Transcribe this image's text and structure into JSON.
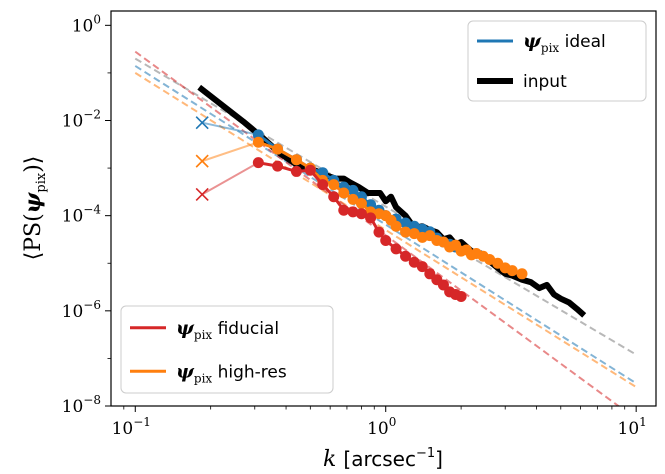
{
  "chart_data": {
    "type": "line",
    "xscale": "log",
    "yscale": "log",
    "xlim": [
      0.08,
      12
    ],
    "ylim": [
      1e-08,
      2
    ],
    "xlabel": "k [arcsec^-1]",
    "ylabel": "⟨PS(ψ_pix)⟩",
    "x_ticks": [
      {
        "value": 0.1,
        "base": "10",
        "exp": "−1"
      },
      {
        "value": 1,
        "base": "10",
        "exp": "0"
      },
      {
        "value": 10,
        "base": "10",
        "exp": "1"
      }
    ],
    "y_ticks": [
      {
        "value": 1,
        "base": "10",
        "exp": "0"
      },
      {
        "value": 0.01,
        "base": "10",
        "exp": "−2"
      },
      {
        "value": 0.0001,
        "base": "10",
        "exp": "−4"
      },
      {
        "value": 1e-06,
        "base": "10",
        "exp": "−6"
      },
      {
        "value": 1e-08,
        "base": "10",
        "exp": "−8"
      }
    ],
    "legends": [
      {
        "position": "upper-right",
        "entries": [
          {
            "label_sym": "ψ",
            "label_sub": "pix",
            "label_text": " ideal",
            "color": "#1f77b4",
            "width": 3
          },
          {
            "label_sym": "",
            "label_sub": "",
            "label_text": "input",
            "color": "#000000",
            "width": 6
          }
        ]
      },
      {
        "position": "lower-left",
        "entries": [
          {
            "label_sym": "ψ",
            "label_sub": "pix",
            "label_text": " fiducial",
            "color": "#d62728",
            "width": 3
          },
          {
            "label_sym": "ψ",
            "label_sub": "pix",
            "label_text": " high-res",
            "color": "#ff7f0e",
            "width": 3
          }
        ]
      }
    ],
    "series": [
      {
        "name": "input",
        "color": "#000000",
        "kind": "line",
        "x": [
          0.18,
          0.22,
          0.27,
          0.32,
          0.38,
          0.45,
          0.52,
          0.58,
          0.63,
          0.68,
          0.72,
          0.78,
          0.85,
          0.9,
          0.95,
          1.0,
          1.05,
          1.1,
          1.2,
          1.3,
          1.4,
          1.5,
          1.6,
          1.7,
          1.8,
          1.9,
          2.0,
          2.2,
          2.4,
          2.6,
          2.8,
          3.0,
          3.2,
          3.5,
          3.8,
          4.1,
          4.4,
          4.7,
          5.0,
          5.4,
          5.8,
          6.2
        ],
        "y": [
          0.05,
          0.022,
          0.0095,
          0.0045,
          0.002,
          0.0011,
          0.0009,
          0.0007,
          0.0006,
          0.0006,
          0.0005,
          0.0004,
          0.0003,
          0.0003,
          0.0003,
          0.0002,
          0.00025,
          0.00015,
          0.0001,
          5.5e-05,
          6e-05,
          5e-05,
          4.5e-05,
          3.2e-05,
          3.5e-05,
          2.5e-05,
          2.8e-05,
          1.8e-05,
          1.6e-05,
          1.1e-05,
          8e-06,
          6e-06,
          5.5e-06,
          4.5e-06,
          4e-06,
          3e-06,
          3.5e-06,
          2.2e-06,
          1.8e-06,
          1.5e-06,
          1.1e-06,
          8e-07
        ]
      },
      {
        "name": "ψ_pix ideal",
        "color": "#1f77b4",
        "kind": "points",
        "cross": {
          "x": 0.185,
          "y": 0.009
        },
        "x": [
          0.31,
          0.37,
          0.44,
          0.5,
          0.56,
          0.62,
          0.68,
          0.74,
          0.8,
          0.87,
          0.94,
          1.0,
          1.1,
          1.2,
          1.3,
          1.4,
          1.5,
          1.6,
          1.7,
          1.8,
          1.9
        ],
        "y": [
          0.005,
          0.0025,
          0.0015,
          0.001,
          0.0008,
          0.00055,
          0.0004,
          0.00034,
          0.00025,
          0.00017,
          0.00013,
          0.0001,
          8.5e-05,
          7e-05,
          6e-05,
          5.2e-05,
          4.6e-05,
          3.4e-05,
          2.8e-05,
          2.5e-05,
          2.2e-05
        ]
      },
      {
        "name": "ψ_pix high-res",
        "color": "#ff7f0e",
        "kind": "points",
        "cross": {
          "x": 0.185,
          "y": 0.0014
        },
        "x": [
          0.31,
          0.37,
          0.44,
          0.5,
          0.56,
          0.62,
          0.68,
          0.74,
          0.8,
          0.87,
          0.94,
          1.0,
          1.05,
          1.1,
          1.2,
          1.3,
          1.4,
          1.5,
          1.6,
          1.7,
          1.8,
          1.9,
          2.0,
          2.1,
          2.2,
          2.3,
          2.45,
          2.6,
          2.8,
          3.0,
          3.2,
          3.5
        ],
        "y": [
          0.0035,
          0.0025,
          0.0015,
          0.001,
          0.00055,
          0.00045,
          0.0003,
          0.00022,
          0.00018,
          0.00012,
          0.00011,
          0.0001,
          8e-05,
          6e-05,
          4.5e-05,
          4.2e-05,
          3.5e-05,
          3.8e-05,
          3e-05,
          2.8e-05,
          2.2e-05,
          2.4e-05,
          1.8e-05,
          1.9e-05,
          1.5e-05,
          1.6e-05,
          1.4e-05,
          1.2e-05,
          1e-05,
          8e-06,
          7e-06,
          6e-06
        ]
      },
      {
        "name": "ψ_pix fiducial",
        "color": "#d62728",
        "kind": "points",
        "cross": {
          "x": 0.185,
          "y": 0.00028
        },
        "x": [
          0.31,
          0.37,
          0.44,
          0.5,
          0.56,
          0.62,
          0.68,
          0.74,
          0.8,
          0.87,
          0.94,
          1.0,
          1.1,
          1.2,
          1.3,
          1.4,
          1.5,
          1.6,
          1.7,
          1.8,
          1.9,
          2.0
        ],
        "y": [
          0.0013,
          0.0011,
          0.00085,
          0.0009,
          0.00045,
          0.00025,
          0.00013,
          0.00012,
          0.00011,
          9e-05,
          4.5e-05,
          3e-05,
          2e-05,
          1.4e-05,
          1.05e-05,
          8.5e-06,
          6e-06,
          4.5e-06,
          3.5e-06,
          2.5e-06,
          2.2e-06,
          2e-06
        ]
      }
    ],
    "power_law_fits": [
      {
        "color": "#7f7f7f",
        "x": [
          0.1,
          10
        ],
        "y": [
          0.2,
          1.2e-07
        ]
      },
      {
        "color": "#1f77b4",
        "x": [
          0.1,
          10
        ],
        "y": [
          0.14,
          3e-08
        ]
      },
      {
        "color": "#ff7f0e",
        "x": [
          0.1,
          10
        ],
        "y": [
          0.1,
          2.5e-08
        ]
      },
      {
        "color": "#d62728",
        "x": [
          0.1,
          8.5
        ],
        "y": [
          0.28,
          1e-08
        ]
      }
    ]
  }
}
